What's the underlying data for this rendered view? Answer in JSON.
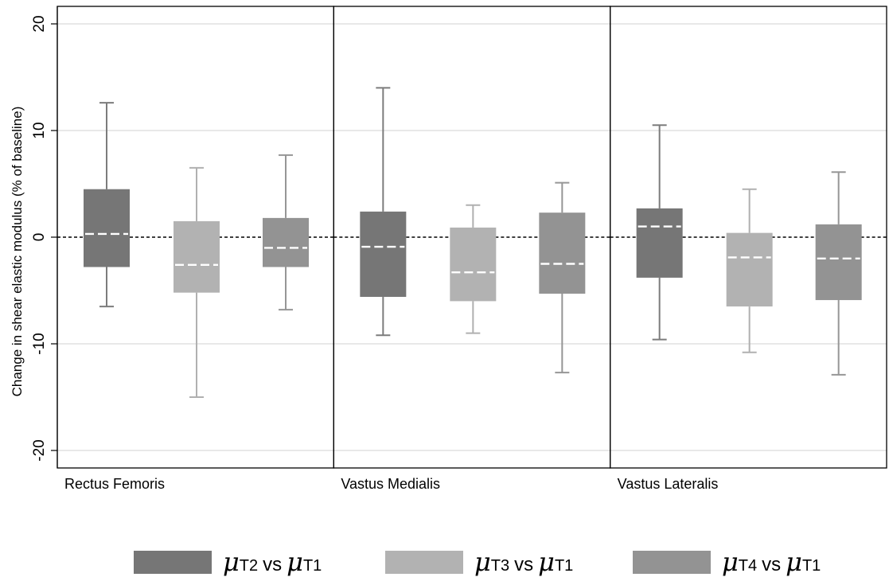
{
  "chart_data": {
    "type": "box",
    "ylabel": "Change in shear elastic modulus (% of baseline)",
    "ylim": [
      -22,
      22
    ],
    "yticks": [
      20,
      10,
      0,
      -10,
      -20
    ],
    "reference_line": 0,
    "grid": true,
    "panels": [
      {
        "label": "Rectus Femoris",
        "boxes": [
          {
            "series": 0,
            "whisker_low": -6.5,
            "q1": -2.8,
            "median": 0.3,
            "q3": 4.5,
            "whisker_high": 12.6
          },
          {
            "series": 1,
            "whisker_low": -15.0,
            "q1": -5.2,
            "median": -2.6,
            "q3": 1.5,
            "whisker_high": 6.5
          },
          {
            "series": 2,
            "whisker_low": -6.8,
            "q1": -2.8,
            "median": -1.0,
            "q3": 1.8,
            "whisker_high": 7.7
          }
        ]
      },
      {
        "label": "Vastus Medialis",
        "boxes": [
          {
            "series": 0,
            "whisker_low": -9.2,
            "q1": -5.6,
            "median": -0.9,
            "q3": 2.4,
            "whisker_high": 14.0
          },
          {
            "series": 1,
            "whisker_low": -9.0,
            "q1": -6.0,
            "median": -3.3,
            "q3": 0.9,
            "whisker_high": 3.0
          },
          {
            "series": 2,
            "whisker_low": -12.7,
            "q1": -5.3,
            "median": -2.5,
            "q3": 2.3,
            "whisker_high": 5.1
          }
        ]
      },
      {
        "label": "Vastus Lateralis",
        "boxes": [
          {
            "series": 0,
            "whisker_low": -9.6,
            "q1": -3.8,
            "median": 1.0,
            "q3": 2.7,
            "whisker_high": 10.5
          },
          {
            "series": 1,
            "whisker_low": -10.8,
            "q1": -6.5,
            "median": -1.9,
            "q3": 0.4,
            "whisker_high": 4.5
          },
          {
            "series": 2,
            "whisker_low": -12.9,
            "q1": -5.9,
            "median": -2.0,
            "q3": 1.2,
            "whisker_high": 6.1
          }
        ]
      }
    ],
    "series": [
      {
        "subscript_a": "T2",
        "vs": "vs",
        "subscript_b": "T1",
        "color": "#767676",
        "whisker_color": "#7c7c7c"
      },
      {
        "subscript_a": "T3",
        "vs": "vs",
        "subscript_b": "T1",
        "color": "#b2b2b2",
        "whisker_color": "#b0b0b0"
      },
      {
        "subscript_a": "T4",
        "vs": "vs",
        "subscript_b": "T1",
        "color": "#939393",
        "whisker_color": "#969696"
      }
    ],
    "legend_position": "bottom",
    "median_style": "white-dashed"
  }
}
